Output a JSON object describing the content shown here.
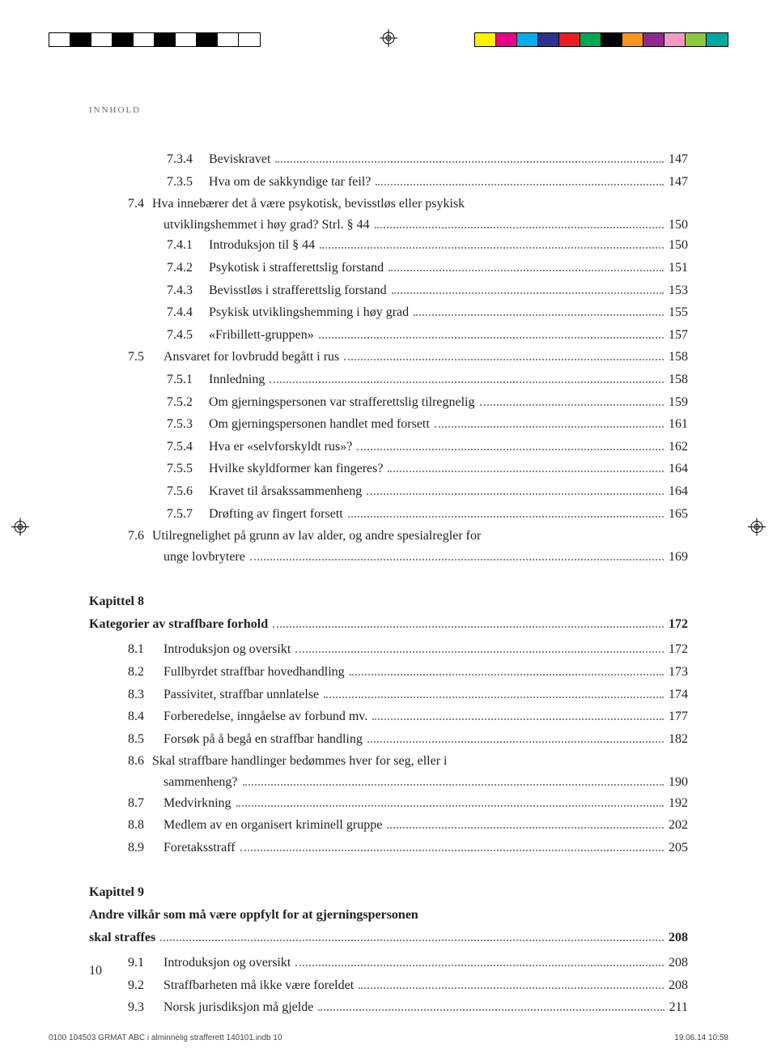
{
  "running_head": "innhold",
  "page_number": "10",
  "footer_left": "0100 104503 GRMAT ABC i alminnelig strafferett 140101.indb   10",
  "footer_right": "19.06.14   10:58",
  "colorbar_left": [
    "#ffffff",
    "#000000",
    "#ffffff",
    "#000000",
    "#ffffff",
    "#000000",
    "#ffffff",
    "#000000",
    "#ffffff",
    "#ffffff"
  ],
  "colorbar_right": [
    "#fff200",
    "#ec008c",
    "#00aeef",
    "#2e3192",
    "#ed1c24",
    "#00a651",
    "#000000",
    "#f7941d",
    "#92278f",
    "#f49ac1",
    "#8dc63f",
    "#00a99d"
  ],
  "entries": [
    {
      "indent": 2,
      "num": "7.3.4",
      "title": "Beviskravet",
      "pg": "147"
    },
    {
      "indent": 2,
      "num": "7.3.5",
      "title": "Hva om de sakkyndige tar feil?",
      "pg": "147"
    },
    {
      "indent": 1,
      "num": "7.4",
      "multiline": true,
      "title1": "Hva innebærer det å være psykotisk, bevisstløs eller psykisk",
      "title2": "utviklingshemmet i høy grad? Strl. § 44",
      "pg": "150"
    },
    {
      "indent": 2,
      "num": "7.4.1",
      "title": "Introduksjon til § 44",
      "pg": "150"
    },
    {
      "indent": 2,
      "num": "7.4.2",
      "title": "Psykotisk i strafferettslig forstand",
      "pg": "151"
    },
    {
      "indent": 2,
      "num": "7.4.3",
      "title": "Bevisstløs i strafferettslig forstand",
      "pg": "153"
    },
    {
      "indent": 2,
      "num": "7.4.4",
      "title": "Psykisk utviklingshemming i høy grad",
      "pg": "155"
    },
    {
      "indent": 2,
      "num": "7.4.5",
      "title": "«Fribillett-gruppen»",
      "pg": "157"
    },
    {
      "indent": 1,
      "num": "7.5",
      "title": "Ansvaret for lovbrudd begått i rus",
      "pg": "158"
    },
    {
      "indent": 2,
      "num": "7.5.1",
      "title": "Innledning",
      "pg": "158"
    },
    {
      "indent": 2,
      "num": "7.5.2",
      "title": "Om gjerningspersonen var strafferettslig tilregnelig",
      "pg": "159"
    },
    {
      "indent": 2,
      "num": "7.5.3",
      "title": "Om gjerningspersonen handlet med forsett",
      "pg": "161"
    },
    {
      "indent": 2,
      "num": "7.5.4",
      "title": "Hva er «selvforskyldt rus»?",
      "pg": "162"
    },
    {
      "indent": 2,
      "num": "7.5.5",
      "title": "Hvilke skyldformer kan fingeres?",
      "pg": "164"
    },
    {
      "indent": 2,
      "num": "7.5.6",
      "title": "Kravet til årsakssammenheng",
      "pg": "164"
    },
    {
      "indent": 2,
      "num": "7.5.7",
      "title": "Drøfting av fingert forsett",
      "pg": "165"
    },
    {
      "indent": 1,
      "num": "7.6",
      "multiline": true,
      "title1": "Utilregnelighet på grunn av lav alder, og andre spesialregler for",
      "title2": "unge lovbrytere",
      "pg": "169"
    }
  ],
  "chapters": [
    {
      "label": "Kapittel 8",
      "title": "Kategorier av straffbare forhold",
      "pg": "172",
      "items": [
        {
          "indent": 1,
          "num": "8.1",
          "title": "Introduksjon og oversikt",
          "pg": "172"
        },
        {
          "indent": 1,
          "num": "8.2",
          "title": "Fullbyrdet straffbar hovedhandling",
          "pg": "173"
        },
        {
          "indent": 1,
          "num": "8.3",
          "title": "Passivitet, straffbar unnlatelse",
          "pg": "174"
        },
        {
          "indent": 1,
          "num": "8.4",
          "title": "Forberedelse, inngåelse av forbund mv.",
          "pg": "177"
        },
        {
          "indent": 1,
          "num": "8.5",
          "title": "Forsøk på å begå en straffbar handling",
          "pg": "182"
        },
        {
          "indent": 1,
          "num": "8.6",
          "multiline": true,
          "title1": "Skal straffbare handlinger bedømmes hver for seg, eller i",
          "title2": "sammenheng?",
          "pg": "190"
        },
        {
          "indent": 1,
          "num": "8.7",
          "title": "Medvirkning",
          "pg": "192"
        },
        {
          "indent": 1,
          "num": "8.8",
          "title": "Medlem av en organisert kriminell gruppe",
          "pg": "202"
        },
        {
          "indent": 1,
          "num": "8.9",
          "title": "Foretaksstraff",
          "pg": "205"
        }
      ]
    },
    {
      "label": "Kapittel 9",
      "multiline_title": true,
      "title1": "Andre vilkår som må være oppfylt for at gjerningspersonen",
      "title2": "skal straffes",
      "pg": "208",
      "items": [
        {
          "indent": 1,
          "num": "9.1",
          "title": "Introduksjon og oversikt",
          "pg": "208"
        },
        {
          "indent": 1,
          "num": "9.2",
          "title": "Straffbarheten må ikke være foreldet",
          "pg": "208"
        },
        {
          "indent": 1,
          "num": "9.3",
          "title": "Norsk jurisdiksjon må gjelde",
          "pg": "211"
        }
      ]
    }
  ]
}
